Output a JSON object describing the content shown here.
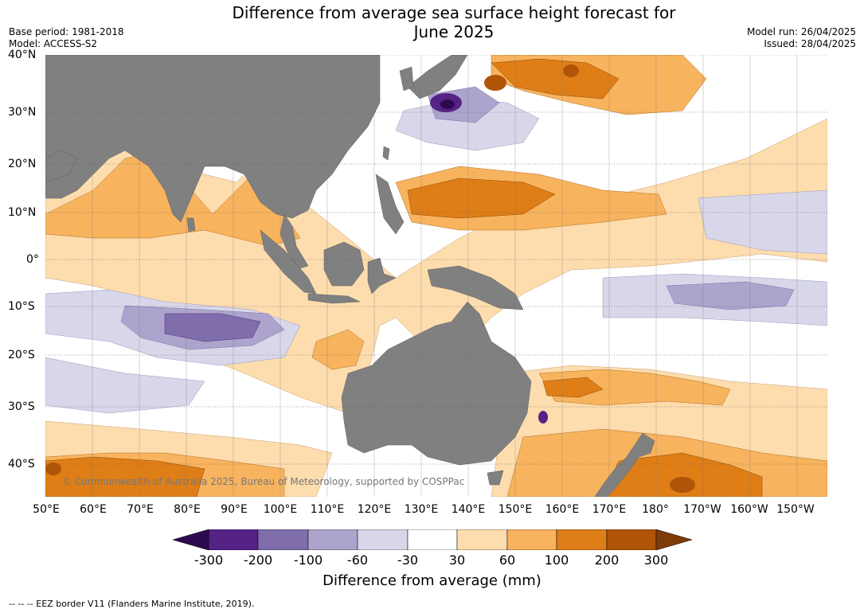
{
  "header": {
    "title_line1": "Difference from average sea surface height forecast for",
    "title_line2": "June 2025",
    "base_period": "Base period: 1981-2018",
    "model": "Model: ACCESS-S2",
    "model_run": "Model run: 26/04/2025",
    "issued": "Issued: 28/04/2025"
  },
  "map": {
    "lat_labels": [
      "40°N",
      "30°N",
      "20°N",
      "10°N",
      "0°",
      "10°S",
      "20°S",
      "30°S",
      "40°S"
    ],
    "lon_labels": [
      "50°E",
      "60°E",
      "70°E",
      "80°E",
      "90°E",
      "100°E",
      "110°E",
      "120°E",
      "130°E",
      "140°E",
      "150°E",
      "160°E",
      "170°E",
      "180°",
      "170°W",
      "160°W",
      "150°W"
    ],
    "copyright": "© Commonwealth of Australia 2025, Bureau of Meteorology, supported by COSPPac",
    "colors": {
      "land": "#808080",
      "grid": "#555555"
    }
  },
  "colorbar": {
    "tick_labels": [
      "-300",
      "-200",
      "-100",
      "-60",
      "-30",
      "30",
      "60",
      "100",
      "200",
      "300"
    ],
    "colors": [
      "#2d0a4e",
      "#552285",
      "#7f6eab",
      "#aca4cc",
      "#d7d7e9",
      "#ffffff",
      "#fddcae",
      "#f8b35e",
      "#df7e17",
      "#b05508",
      "#7f3b08"
    ],
    "title": "Difference from average (mm)"
  },
  "footnote": "--  --  -- EEZ border V11 (Flanders Marine Institute, 2019)."
}
